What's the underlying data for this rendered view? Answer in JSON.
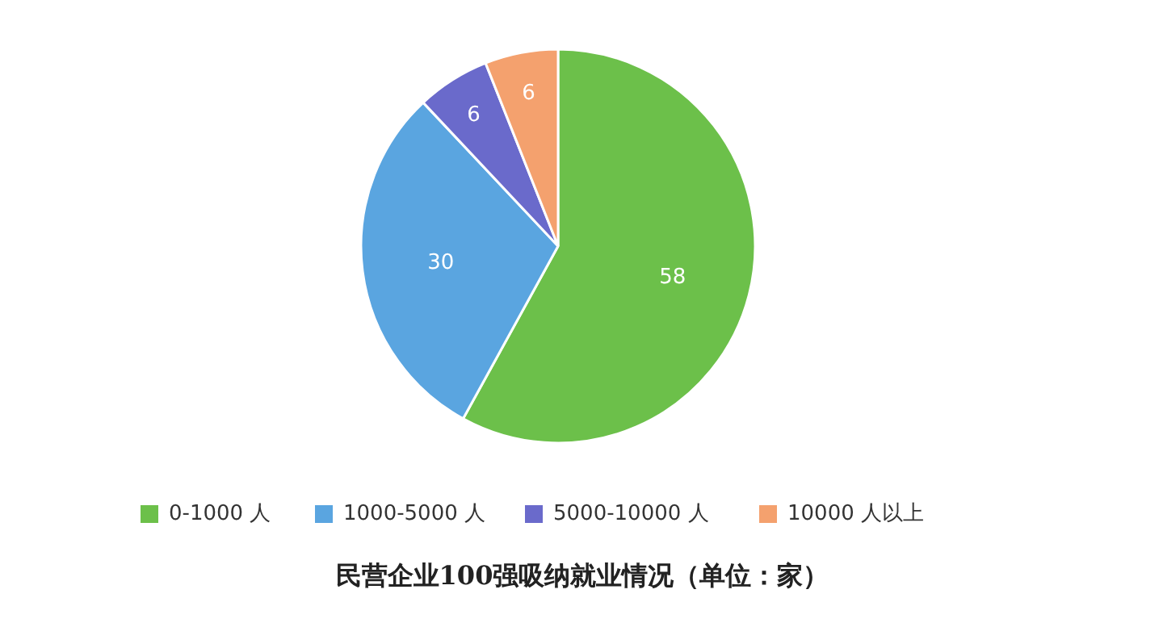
{
  "chart_data": {
    "type": "pie",
    "title": "民营企业100强吸纳就业情况（单位：家）",
    "categories": [
      "0-1000 人",
      "1000-5000 人",
      "5000-10000 人",
      "10000 人以上"
    ],
    "values": [
      58,
      30,
      6,
      6
    ],
    "colors": [
      "#6cc04a",
      "#5aa5e0",
      "#6a6acb",
      "#f4a16e"
    ],
    "data_labels": true,
    "legend": "bottom"
  }
}
